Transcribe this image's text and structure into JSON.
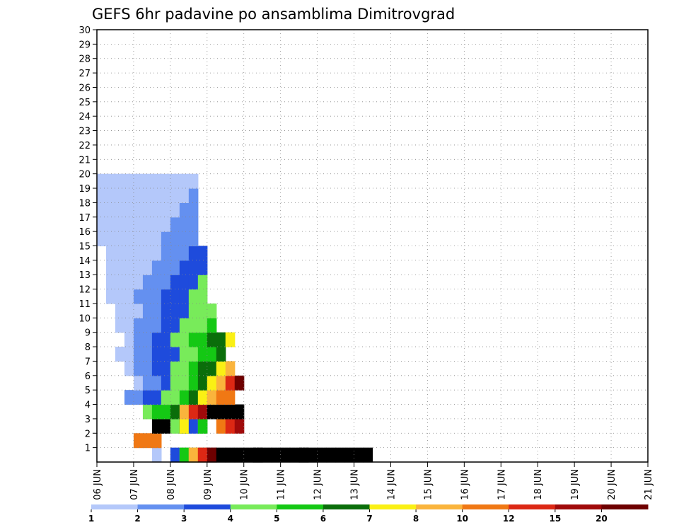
{
  "chart_data": {
    "type": "heatmap",
    "title": "GEFS 6hr padavine po ansamblima Dimitrovgrad",
    "xlabel": "",
    "ylabel": "",
    "x_ticks": [
      "06 JUN",
      "07 JUN",
      "08 JUN",
      "09 JUN",
      "10 JUN",
      "11 JUN",
      "12 JUN",
      "13 JUN",
      "14 JUN",
      "15 JUN",
      "16 JUN",
      "17 JUN",
      "18 JUN",
      "19 JUN",
      "20 JUN",
      "21 JUN"
    ],
    "y_ticks": [
      "1",
      "2",
      "3",
      "4",
      "5",
      "6",
      "7",
      "8",
      "9",
      "10",
      "11",
      "12",
      "13",
      "14",
      "15",
      "16",
      "17",
      "18",
      "19",
      "20",
      "21",
      "22",
      "23",
      "24",
      "25",
      "26",
      "27",
      "28",
      "29",
      "30"
    ],
    "grid": true,
    "levels": [
      "1",
      "2",
      "3",
      "4",
      "5",
      "6",
      "7",
      "8",
      "10",
      "12",
      "15",
      "20"
    ],
    "colors": [
      "#b4c8fa",
      "#6490f0",
      "#1e4bdc",
      "#78eb5a",
      "#14c814",
      "#0a6e0a",
      "#faf014",
      "#fab43c",
      "#f07814",
      "#dc2814",
      "#a00a0a",
      "#6e0000"
    ],
    "cells": [
      [
        6,
        1,
        0
      ],
      [
        8,
        1,
        2
      ],
      [
        9,
        1,
        3
      ],
      [
        9,
        1,
        4
      ],
      [
        10,
        1,
        5
      ],
      [
        10,
        1,
        6
      ],
      [
        10,
        1,
        7
      ],
      [
        11,
        1,
        8
      ],
      [
        11,
        1,
        9
      ],
      [
        12,
        1,
        10
      ],
      [
        12,
        1,
        11
      ],
      [
        13,
        1,
        12
      ],
      [
        14,
        1,
        13
      ],
      [
        15,
        1,
        14
      ],
      [
        16,
        1,
        15
      ],
      [
        17,
        1,
        16
      ],
      [
        17,
        1,
        17
      ],
      [
        18,
        1,
        18
      ],
      [
        19,
        1,
        19
      ],
      [
        20,
        1,
        20
      ],
      [
        21,
        1,
        21
      ],
      [
        22,
        1,
        22
      ],
      [
        22,
        1,
        23
      ],
      [
        23,
        1,
        24
      ],
      [
        24,
        1,
        25
      ],
      [
        25,
        1,
        26
      ],
      [
        26,
        1,
        27
      ],
      [
        27,
        1,
        28
      ],
      [
        28,
        1,
        29
      ],
      [
        29,
        1,
        30
      ],
      [
        4,
        2,
        8
      ],
      [
        5,
        2,
        8
      ],
      [
        6,
        2,
        8
      ],
      [
        6,
        3,
        16
      ],
      [
        7,
        3,
        16
      ],
      [
        8,
        3,
        3
      ],
      [
        9,
        3,
        4
      ],
      [
        9,
        3,
        5
      ],
      [
        9,
        3,
        6
      ],
      [
        10,
        3,
        2
      ],
      [
        11,
        3,
        3
      ],
      [
        11,
        3,
        4
      ],
      [
        13,
        3,
        8
      ],
      [
        14,
        3,
        9
      ],
      [
        15,
        3,
        10
      ],
      [
        5,
        4,
        3
      ],
      [
        6,
        4,
        4
      ],
      [
        7,
        4,
        4
      ],
      [
        8,
        4,
        5
      ],
      [
        9,
        4,
        7
      ],
      [
        10,
        4,
        9
      ],
      [
        11,
        4,
        10
      ],
      [
        12,
        4,
        11
      ],
      [
        12,
        4,
        12
      ],
      [
        13,
        4,
        13
      ],
      [
        14,
        4,
        15
      ],
      [
        15,
        4,
        16
      ],
      [
        3,
        5,
        1
      ],
      [
        4,
        5,
        1
      ],
      [
        5,
        5,
        2
      ],
      [
        6,
        5,
        2
      ],
      [
        7,
        5,
        3
      ],
      [
        8,
        5,
        3
      ],
      [
        9,
        5,
        4
      ],
      [
        10,
        5,
        5
      ],
      [
        11,
        5,
        6
      ],
      [
        12,
        5,
        7
      ],
      [
        13,
        5,
        8
      ],
      [
        14,
        5,
        8
      ],
      [
        4,
        6,
        0
      ],
      [
        5,
        6,
        1
      ],
      [
        6,
        6,
        1
      ],
      [
        7,
        6,
        2
      ],
      [
        8,
        6,
        3
      ],
      [
        9,
        6,
        3
      ],
      [
        10,
        6,
        4
      ],
      [
        11,
        6,
        5
      ],
      [
        12,
        6,
        6
      ],
      [
        13,
        6,
        7
      ],
      [
        14,
        6,
        9
      ],
      [
        15,
        6,
        11
      ],
      [
        3,
        7,
        0
      ],
      [
        4,
        7,
        1
      ],
      [
        5,
        7,
        1
      ],
      [
        6,
        7,
        2
      ],
      [
        7,
        7,
        2
      ],
      [
        8,
        7,
        3
      ],
      [
        9,
        7,
        3
      ],
      [
        10,
        7,
        4
      ],
      [
        11,
        7,
        5
      ],
      [
        12,
        7,
        5
      ],
      [
        13,
        7,
        6
      ],
      [
        14,
        7,
        7
      ],
      [
        2,
        8,
        0
      ],
      [
        3,
        8,
        0
      ],
      [
        4,
        8,
        1
      ],
      [
        5,
        8,
        1
      ],
      [
        6,
        8,
        2
      ],
      [
        7,
        8,
        2
      ],
      [
        8,
        8,
        2
      ],
      [
        9,
        8,
        3
      ],
      [
        10,
        8,
        3
      ],
      [
        11,
        8,
        4
      ],
      [
        12,
        8,
        4
      ],
      [
        13,
        8,
        5
      ],
      [
        3,
        9,
        0
      ],
      [
        4,
        9,
        1
      ],
      [
        5,
        9,
        1
      ],
      [
        6,
        9,
        2
      ],
      [
        7,
        9,
        2
      ],
      [
        8,
        9,
        3
      ],
      [
        9,
        9,
        3
      ],
      [
        10,
        9,
        4
      ],
      [
        11,
        9,
        4
      ],
      [
        12,
        9,
        5
      ],
      [
        13,
        9,
        5
      ],
      [
        14,
        9,
        6
      ],
      [
        2,
        10,
        0
      ],
      [
        3,
        10,
        0
      ],
      [
        4,
        10,
        1
      ],
      [
        5,
        10,
        1
      ],
      [
        6,
        10,
        1
      ],
      [
        7,
        10,
        2
      ],
      [
        8,
        10,
        2
      ],
      [
        9,
        10,
        3
      ],
      [
        10,
        10,
        3
      ],
      [
        11,
        10,
        3
      ],
      [
        12,
        10,
        4
      ],
      [
        2,
        11,
        0
      ],
      [
        3,
        11,
        0
      ],
      [
        4,
        11,
        0
      ],
      [
        5,
        11,
        1
      ],
      [
        6,
        11,
        1
      ],
      [
        7,
        11,
        2
      ],
      [
        8,
        11,
        2
      ],
      [
        9,
        11,
        2
      ],
      [
        10,
        11,
        3
      ],
      [
        11,
        11,
        3
      ],
      [
        12,
        11,
        3
      ],
      [
        1,
        12,
        0
      ],
      [
        2,
        12,
        0
      ],
      [
        3,
        12,
        0
      ],
      [
        4,
        12,
        1
      ],
      [
        5,
        12,
        1
      ],
      [
        6,
        12,
        1
      ],
      [
        7,
        12,
        2
      ],
      [
        8,
        12,
        2
      ],
      [
        9,
        12,
        2
      ],
      [
        10,
        12,
        3
      ],
      [
        11,
        12,
        3
      ],
      [
        1,
        13,
        0
      ],
      [
        2,
        13,
        0
      ],
      [
        3,
        13,
        0
      ],
      [
        4,
        13,
        0
      ],
      [
        5,
        13,
        1
      ],
      [
        6,
        13,
        1
      ],
      [
        7,
        13,
        1
      ],
      [
        8,
        13,
        2
      ],
      [
        9,
        13,
        2
      ],
      [
        10,
        13,
        2
      ],
      [
        11,
        13,
        3
      ],
      [
        1,
        14,
        0
      ],
      [
        2,
        14,
        0
      ],
      [
        3,
        14,
        0
      ],
      [
        4,
        14,
        0
      ],
      [
        5,
        14,
        0
      ],
      [
        6,
        14,
        1
      ],
      [
        7,
        14,
        1
      ],
      [
        8,
        14,
        1
      ],
      [
        9,
        14,
        2
      ],
      [
        10,
        14,
        2
      ],
      [
        11,
        14,
        2
      ],
      [
        1,
        15,
        0
      ],
      [
        2,
        15,
        0
      ],
      [
        3,
        15,
        0
      ],
      [
        4,
        15,
        0
      ],
      [
        5,
        15,
        0
      ],
      [
        6,
        15,
        0
      ],
      [
        7,
        15,
        1
      ],
      [
        8,
        15,
        1
      ],
      [
        9,
        15,
        1
      ],
      [
        10,
        15,
        2
      ],
      [
        11,
        15,
        2
      ],
      [
        0,
        16,
        0
      ],
      [
        1,
        16,
        0
      ],
      [
        2,
        16,
        0
      ],
      [
        3,
        16,
        0
      ],
      [
        4,
        16,
        0
      ],
      [
        5,
        16,
        0
      ],
      [
        6,
        16,
        0
      ],
      [
        7,
        16,
        1
      ],
      [
        8,
        16,
        1
      ],
      [
        9,
        16,
        1
      ],
      [
        10,
        16,
        1
      ],
      [
        0,
        17,
        0
      ],
      [
        1,
        17,
        0
      ],
      [
        2,
        17,
        0
      ],
      [
        3,
        17,
        0
      ],
      [
        4,
        17,
        0
      ],
      [
        5,
        17,
        0
      ],
      [
        6,
        17,
        0
      ],
      [
        7,
        17,
        0
      ],
      [
        8,
        17,
        1
      ],
      [
        9,
        17,
        1
      ],
      [
        10,
        17,
        1
      ],
      [
        0,
        18,
        0
      ],
      [
        1,
        18,
        0
      ],
      [
        2,
        18,
        0
      ],
      [
        3,
        18,
        0
      ],
      [
        4,
        18,
        0
      ],
      [
        5,
        18,
        0
      ],
      [
        6,
        18,
        0
      ],
      [
        7,
        18,
        0
      ],
      [
        8,
        18,
        0
      ],
      [
        9,
        18,
        1
      ],
      [
        10,
        18,
        1
      ],
      [
        0,
        19,
        0
      ],
      [
        1,
        19,
        0
      ],
      [
        2,
        19,
        0
      ],
      [
        3,
        19,
        0
      ],
      [
        4,
        19,
        0
      ],
      [
        5,
        19,
        0
      ],
      [
        6,
        19,
        0
      ],
      [
        7,
        19,
        0
      ],
      [
        8,
        19,
        0
      ],
      [
        9,
        19,
        0
      ],
      [
        10,
        19,
        1
      ],
      [
        0,
        20,
        0
      ],
      [
        1,
        20,
        0
      ],
      [
        2,
        20,
        0
      ],
      [
        3,
        20,
        0
      ],
      [
        4,
        20,
        0
      ],
      [
        5,
        20,
        0
      ],
      [
        6,
        20,
        0
      ],
      [
        7,
        20,
        0
      ],
      [
        8,
        20,
        0
      ],
      [
        9,
        20,
        0
      ],
      [
        10,
        20,
        0
      ]
    ]
  },
  "colorbar": {
    "labels": [
      "1",
      "2",
      "3",
      "4",
      "5",
      "6",
      "7",
      "8",
      "10",
      "12",
      "15",
      "20"
    ]
  }
}
